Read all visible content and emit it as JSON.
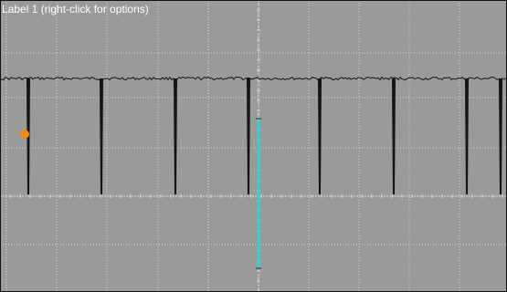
{
  "display": {
    "label": "Label 1 (right-click for options)",
    "background_color": "#9a9a9a",
    "grid_color": "#d8d8d8",
    "trace_color": "#141414",
    "cursor_color": "#34d1d1",
    "marker_color": "#f08a10",
    "border_color": "#111111",
    "trace_description": "flat baseline with periodic negative-going spikes",
    "cursor": "vertical-cyan-cursor",
    "marker": "orange-channel-marker"
  }
}
